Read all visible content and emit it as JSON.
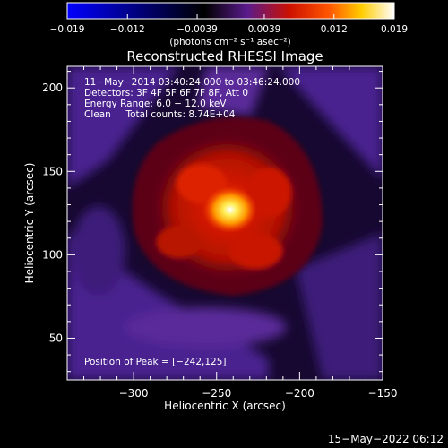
{
  "chart_data": {
    "type": "heatmap",
    "title": "Reconstructed RHESSI Image",
    "xlabel": "Heliocentric X (arcsec)",
    "ylabel": "Heliocentric Y (arcsec)",
    "xlim": [
      -340,
      -150
    ],
    "ylim": [
      25,
      213
    ],
    "x_ticks": [
      -300,
      -250,
      -200,
      -150
    ],
    "x_tick_labels": [
      "−300",
      "−250",
      "−200",
      "−150"
    ],
    "y_ticks": [
      50,
      100,
      150,
      200
    ],
    "y_tick_labels": [
      "50",
      "100",
      "150",
      "200"
    ],
    "colorbar": {
      "range": [
        -0.019,
        0.019
      ],
      "ticks": [
        -0.019,
        -0.012,
        -0.0039,
        0.0039,
        0.012,
        0.019
      ],
      "tick_labels": [
        "−0.019",
        "−0.012",
        "−0.0039",
        "0.0039",
        "0.012",
        "0.019"
      ],
      "units": "(photons cm⁻² s⁻¹ asec⁻²)",
      "colormap": [
        "#0000ff",
        "#000000",
        "#5a1a8c",
        "#cc1100",
        "#ff5500",
        "#ffcc00",
        "#ffffff"
      ]
    },
    "annotations": [
      "11−May−2014 03:40:24.000 to 03:46:24.000",
      "Detectors: 3F 4F 5F 6F 7F 8F, Att 0",
      "Energy Range: 6.0 − 12.0 keV",
      "Clean     Total counts: 8.74E+04"
    ],
    "peak_label": "Position of Peak = [−242,125]",
    "peak": {
      "x": -242,
      "y": 125,
      "value": 0.019
    },
    "footer_timestamp": "15−May−2022 06:12",
    "grid": false,
    "legend": "colorbar-top"
  }
}
